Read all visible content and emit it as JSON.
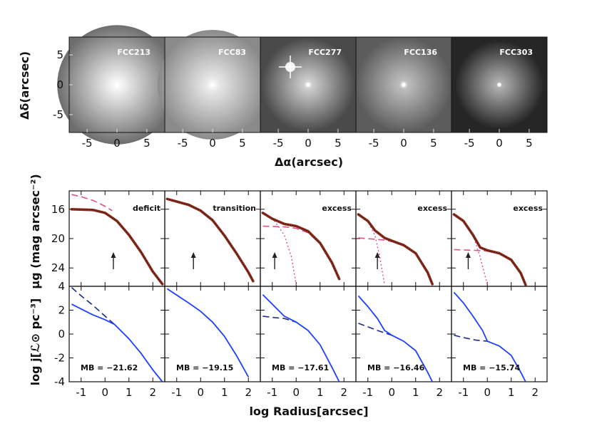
{
  "chart_data": {
    "type": "line",
    "image_strip": {
      "panels": [
        {
          "name": "FCC213",
          "sigma": 0.55,
          "bg": "#6e6e6e",
          "peak": "#e8e8e8"
        },
        {
          "name": "FCC83",
          "sigma": 0.45,
          "bg": "#8a8a8a",
          "peak": "#e6e6e6"
        },
        {
          "name": "FCC277",
          "sigma": 0.28,
          "bg": "#4a4a4a",
          "peak": "#cfcfcf"
        },
        {
          "name": "FCC136",
          "sigma": 0.3,
          "bg": "#5c5c5c",
          "peak": "#bdbdbd"
        },
        {
          "name": "FCC303",
          "sigma": 0.22,
          "bg": "#262626",
          "peak": "#b0b0b0"
        }
      ],
      "xlim": [
        -8,
        8
      ],
      "ylim": [
        -8,
        8
      ],
      "xticks": [
        "-5",
        "0",
        "5"
      ],
      "xtick_values": [
        -5,
        0,
        5
      ],
      "yticks": [
        "5",
        "0",
        "-5"
      ],
      "ytick_values": [
        5,
        0,
        -5
      ],
      "xlabel": "Δα(arcsec)",
      "ylabel": "Δδ(arcsec)"
    },
    "surface_brightness": {
      "ylabel": "μg (mag arcsec⁻²)",
      "ylim": [
        26.5,
        13.5
      ],
      "yticks": [
        "16",
        "20",
        "24"
      ],
      "ytick_values": [
        16,
        20,
        24
      ],
      "panels": [
        {
          "label": "deficit",
          "arrow_x": 0.35,
          "data": {
            "x": [
              -1.4,
              -0.5,
              0.0,
              0.5,
              1.0,
              1.5,
              2.0,
              2.4
            ],
            "y": [
              16.0,
              16.1,
              16.5,
              17.6,
              19.5,
              21.8,
              24.5,
              26.2
            ]
          },
          "inner_dashed": {
            "x": [
              -1.4,
              -1.0,
              -0.5,
              0.0,
              0.3
            ],
            "y": [
              14.0,
              14.3,
              14.8,
              15.6,
              16.2
            ]
          }
        },
        {
          "label": "transition",
          "arrow_x": -0.3,
          "data": {
            "x": [
              -1.4,
              -0.5,
              0.0,
              0.5,
              1.0,
              1.5,
              2.0,
              2.2
            ],
            "y": [
              14.6,
              15.4,
              16.2,
              17.5,
              19.6,
              22.0,
              24.6,
              25.8
            ]
          }
        },
        {
          "label": "excess",
          "arrow_x": -0.9,
          "data": {
            "x": [
              -1.4,
              -1.0,
              -0.5,
              0.0,
              0.5,
              1.0,
              1.5,
              1.8
            ],
            "y": [
              16.5,
              17.3,
              18.0,
              18.3,
              19.0,
              20.6,
              23.3,
              25.5
            ]
          },
          "outer_dashed": {
            "x": [
              -1.4,
              -0.5,
              0.0,
              0.5,
              1.0,
              1.5,
              1.8
            ],
            "y": [
              18.3,
              18.4,
              18.6,
              19.2,
              20.7,
              23.3,
              25.5
            ]
          },
          "nucleus_dotted": {
            "x": [
              -1.4,
              -1.0,
              -0.5,
              -0.2,
              0.0
            ],
            "y": [
              16.5,
              17.2,
              19.5,
              22.5,
              26.3
            ]
          }
        },
        {
          "label": "excess",
          "arrow_x": -0.6,
          "data": {
            "x": [
              -1.4,
              -1.0,
              -0.7,
              -0.3,
              0.0,
              0.5,
              1.0,
              1.5,
              1.7
            ],
            "y": [
              16.7,
              17.6,
              18.9,
              19.9,
              20.3,
              20.9,
              22.0,
              24.6,
              26.2
            ]
          },
          "outer_dashed": {
            "x": [
              -1.4,
              -0.7,
              -0.3,
              0.0,
              0.5,
              1.0,
              1.5,
              1.7
            ],
            "y": [
              19.9,
              20.1,
              20.2,
              20.4,
              20.9,
              22.0,
              24.6,
              26.2
            ]
          },
          "nucleus_dotted": {
            "x": [
              -1.4,
              -1.0,
              -0.7,
              -0.5,
              -0.3
            ],
            "y": [
              16.7,
              17.6,
              19.6,
              22.5,
              26.3
            ]
          }
        },
        {
          "label": "excess",
          "arrow_x": -0.8,
          "data": {
            "x": [
              -1.4,
              -1.0,
              -0.6,
              -0.3,
              0.0,
              0.5,
              1.0,
              1.4,
              1.6
            ],
            "y": [
              16.7,
              17.6,
              19.5,
              21.2,
              21.6,
              22.0,
              22.9,
              24.7,
              26.3
            ]
          },
          "outer_dashed": {
            "x": [
              -1.4,
              -0.5,
              0.0,
              0.5,
              1.0,
              1.4,
              1.6
            ],
            "y": [
              21.5,
              21.6,
              21.7,
              22.0,
              22.9,
              24.7,
              26.3
            ]
          },
          "nucleus_dotted": {
            "x": [
              -1.4,
              -1.0,
              -0.6,
              -0.3,
              0.0
            ],
            "y": [
              16.7,
              17.6,
              19.5,
              22.5,
              26.3
            ]
          }
        }
      ]
    },
    "luminosity_density": {
      "ylabel": "log j[ℒ⊙ pc⁻³]",
      "ylim": [
        -4,
        4
      ],
      "yticks": [
        "4",
        "2",
        "0",
        "-2",
        "-4"
      ],
      "ytick_values": [
        4,
        2,
        0,
        -2,
        -4
      ],
      "panels": [
        {
          "mag": "MB = −21.62",
          "solid": {
            "x": [
              -1.4,
              -0.5,
              0.0,
              0.4,
              1.0,
              1.5,
              2.0,
              2.4
            ],
            "y": [
              2.5,
              1.6,
              1.2,
              0.8,
              -0.4,
              -1.6,
              -3.0,
              -4.1
            ]
          },
          "dashed": {
            "x": [
              -1.4,
              -1.0,
              -0.5,
              0.0,
              0.4
            ],
            "y": [
              3.9,
              3.2,
              2.4,
              1.5,
              0.8
            ]
          }
        },
        {
          "mag": "MB = −19.15",
          "solid": {
            "x": [
              -1.4,
              -0.5,
              0.0,
              0.5,
              1.0,
              1.5,
              2.0
            ],
            "y": [
              3.8,
              2.6,
              1.9,
              1.0,
              -0.2,
              -1.8,
              -3.6
            ]
          }
        },
        {
          "mag": "MB = −17.61",
          "solid": {
            "x": [
              -1.4,
              -1.0,
              -0.5,
              0.0,
              0.5,
              1.0,
              1.5,
              1.8
            ],
            "y": [
              3.3,
              2.5,
              1.5,
              1.0,
              0.3,
              -0.9,
              -2.8,
              -4.1
            ]
          },
          "dashed": {
            "x": [
              -1.4,
              -1.0,
              -0.5,
              0.0,
              0.5
            ],
            "y": [
              1.5,
              1.4,
              1.3,
              1.0,
              0.3
            ]
          }
        },
        {
          "mag": "MB = −16.46",
          "solid": {
            "x": [
              -1.4,
              -1.0,
              -0.6,
              -0.3,
              0.0,
              0.5,
              1.0,
              1.5,
              1.7
            ],
            "y": [
              3.2,
              2.3,
              1.3,
              0.3,
              -0.1,
              -0.6,
              -1.4,
              -3.2,
              -4.1
            ]
          },
          "dashed": {
            "x": [
              -1.4,
              -1.0,
              -0.6,
              -0.3,
              0.0
            ],
            "y": [
              0.9,
              0.6,
              0.3,
              0.1,
              -0.1
            ]
          }
        },
        {
          "mag": "MB = −15.74",
          "solid": {
            "x": [
              -1.4,
              -1.0,
              -0.6,
              -0.2,
              0.0,
              0.5,
              1.0,
              1.4,
              1.6
            ],
            "y": [
              3.5,
              2.6,
              1.5,
              0.3,
              -0.6,
              -1.0,
              -1.8,
              -3.2,
              -4.1
            ]
          },
          "dashed": {
            "x": [
              -1.4,
              -1.0,
              -0.5,
              0.0
            ],
            "y": [
              -0.1,
              -0.3,
              -0.5,
              -0.6
            ]
          }
        }
      ]
    },
    "xaxis": {
      "label": "log Radius[arcsec]",
      "xlim": [
        -1.5,
        2.5
      ],
      "ticks": [
        "-1",
        "0",
        "1",
        "2"
      ],
      "tick_values": [
        -1,
        0,
        1,
        2
      ]
    },
    "colors": {
      "data": "#8b2a1a",
      "model": "#e0508a",
      "solid_density": "#1f3fff",
      "dashed_density": "#1c2a8a"
    }
  }
}
